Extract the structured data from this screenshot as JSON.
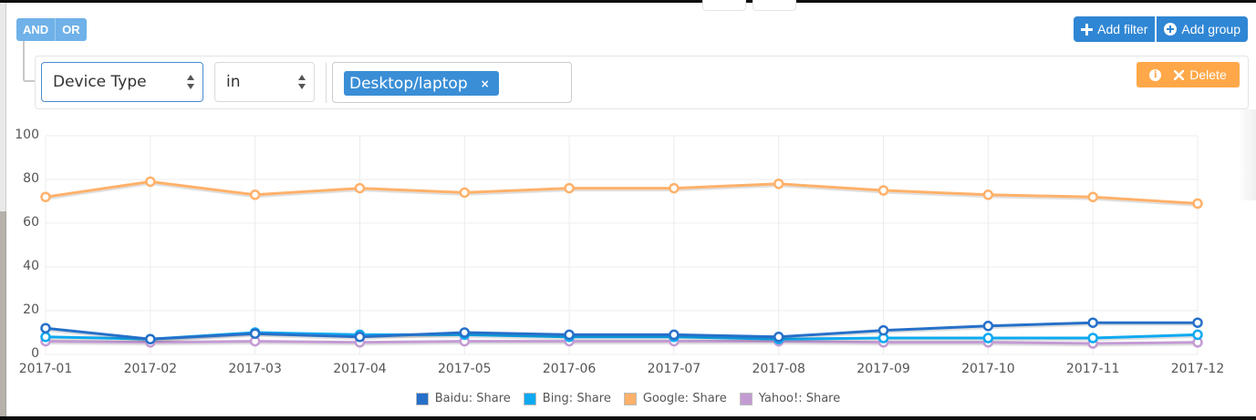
{
  "query_builder": {
    "conditions": [
      {
        "label": "AND",
        "active": true
      },
      {
        "label": "OR",
        "active": false
      }
    ],
    "add_filter_label": "Add filter",
    "add_group_label": "Add group",
    "add_filter_icon": "plus-icon",
    "add_group_icon": "plus-circle-icon",
    "rule": {
      "field": "Device Type",
      "operator": "in",
      "values": [
        {
          "label": "Desktop/laptop",
          "remove": "×"
        }
      ],
      "delete_label": "Delete",
      "info_icon": "info-icon",
      "delete_icon": "times-icon"
    }
  },
  "colors": {
    "primary_blue": "#2f86d4",
    "condition_blue": "#6fb1e8",
    "delete_orange": "#ffa84a",
    "baidu": "#2670c9",
    "bing": "#0ea9f0",
    "google": "#ffb16a",
    "yahoo": "#c39bd3"
  },
  "chart_data": {
    "type": "line",
    "title": "",
    "xlabel": "",
    "ylabel": "",
    "ylim": [
      0,
      100
    ],
    "yticks": [
      0,
      20,
      40,
      60,
      80,
      100
    ],
    "grid": true,
    "legend_position": "bottom",
    "categories": [
      "2017-01",
      "2017-02",
      "2017-03",
      "2017-04",
      "2017-05",
      "2017-06",
      "2017-07",
      "2017-08",
      "2017-09",
      "2017-10",
      "2017-11",
      "2017-12"
    ],
    "series": [
      {
        "name": "Baidu: Share",
        "color": "#2670c9",
        "values": [
          12,
          7,
          9.5,
          8,
          10,
          9,
          9,
          8,
          11,
          13,
          14.5,
          14.5
        ]
      },
      {
        "name": "Bing: Share",
        "color": "#0ea9f0",
        "values": [
          8,
          7,
          10,
          9,
          9,
          8,
          8,
          7,
          7.5,
          7.5,
          7.5,
          9
        ]
      },
      {
        "name": "Google: Share",
        "color": "#ffb16a",
        "values": [
          72,
          79,
          73,
          76,
          74,
          76,
          76,
          78,
          75,
          73,
          72,
          69
        ]
      },
      {
        "name": "Yahoo!: Share",
        "color": "#c39bd3",
        "values": [
          6,
          5.5,
          6,
          5.5,
          6,
          6,
          6,
          6,
          5.5,
          5.5,
          5,
          5.5
        ]
      }
    ]
  }
}
